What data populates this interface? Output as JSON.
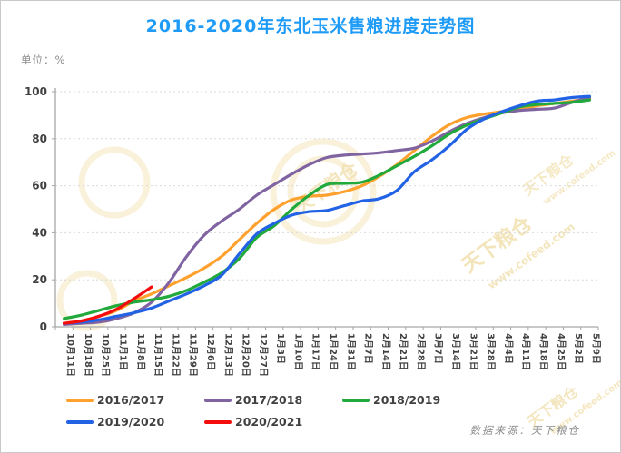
{
  "header": {
    "title": "2016-2020年东北玉米售粮进度走势图",
    "title_color": "#1e9bf7",
    "unit_label": "单位：%"
  },
  "footer": {
    "source": "数据来源：天下粮仓"
  },
  "watermark": {
    "brand": "天下粮仓",
    "url": "www.cofeed.com",
    "color": "#f1e0ae"
  },
  "chart_data": {
    "type": "line",
    "title": "2016-2020年东北玉米售粮进度走势图",
    "ylabel": "单位：%",
    "xlabel": "",
    "ylim": [
      0,
      100
    ],
    "yticks": [
      0,
      20,
      40,
      60,
      80,
      100
    ],
    "grid": "horizontal-dashed",
    "legend_position": "bottom",
    "categories": [
      "10月11日",
      "10月18日",
      "10月25日",
      "11月1日",
      "11月8日",
      "11月15日",
      "11月22日",
      "11月29日",
      "12月6日",
      "12月13日",
      "12月20日",
      "12月27日",
      "1月3日",
      "1月10日",
      "1月17日",
      "1月24日",
      "1月31日",
      "2月7日",
      "2月14日",
      "2月21日",
      "2月28日",
      "3月7日",
      "3月14日",
      "3月21日",
      "3月28日",
      "4月4日",
      "4月11日",
      "4月18日",
      "4月25日",
      "5月2日",
      "5月9日"
    ],
    "series": [
      {
        "name": "2016/2017",
        "color": "#ffa12e",
        "values": [
          1.5,
          2.5,
          4.5,
          7,
          11,
          14,
          17.5,
          21,
          25,
          30,
          37,
          44,
          50,
          54,
          55.5,
          56,
          57.5,
          60,
          64,
          69,
          75,
          81,
          86,
          89,
          90.5,
          91.5,
          92.5,
          94,
          95,
          96,
          97
        ]
      },
      {
        "name": "2017/2018",
        "color": "#8064a2",
        "values": [
          1,
          1.5,
          2,
          3.5,
          6,
          10.5,
          19,
          30,
          39,
          45,
          50,
          56,
          60.5,
          65,
          69,
          72,
          73,
          73.5,
          74,
          75,
          76,
          79,
          83,
          86.5,
          89,
          91,
          92,
          92.5,
          93,
          95.5,
          97.5
        ]
      },
      {
        "name": "2018/2019",
        "color": "#21a93c",
        "values": [
          3.5,
          5,
          7,
          9,
          10.5,
          11.5,
          13,
          15.5,
          19,
          23,
          29,
          38,
          43,
          50,
          56,
          60.5,
          61,
          61.5,
          64.5,
          68.5,
          72.5,
          77,
          82,
          85.8,
          88.5,
          91,
          93.5,
          94.5,
          95,
          95.5,
          96.5
        ]
      },
      {
        "name": "2019/2020",
        "color": "#2263e6",
        "values": [
          1.5,
          2,
          3,
          4.5,
          6,
          8,
          11,
          14,
          17.5,
          22,
          31,
          39.5,
          44,
          47.5,
          49,
          49.5,
          51.5,
          53.5,
          54.5,
          58,
          66,
          71,
          77,
          84,
          88.5,
          91.5,
          94,
          96,
          96.5,
          97.5,
          98
        ]
      },
      {
        "name": "2020/2021",
        "color": "#f50d0d",
        "values": [
          1.5,
          2.5,
          4.5,
          7.5,
          12,
          17
        ]
      }
    ]
  }
}
